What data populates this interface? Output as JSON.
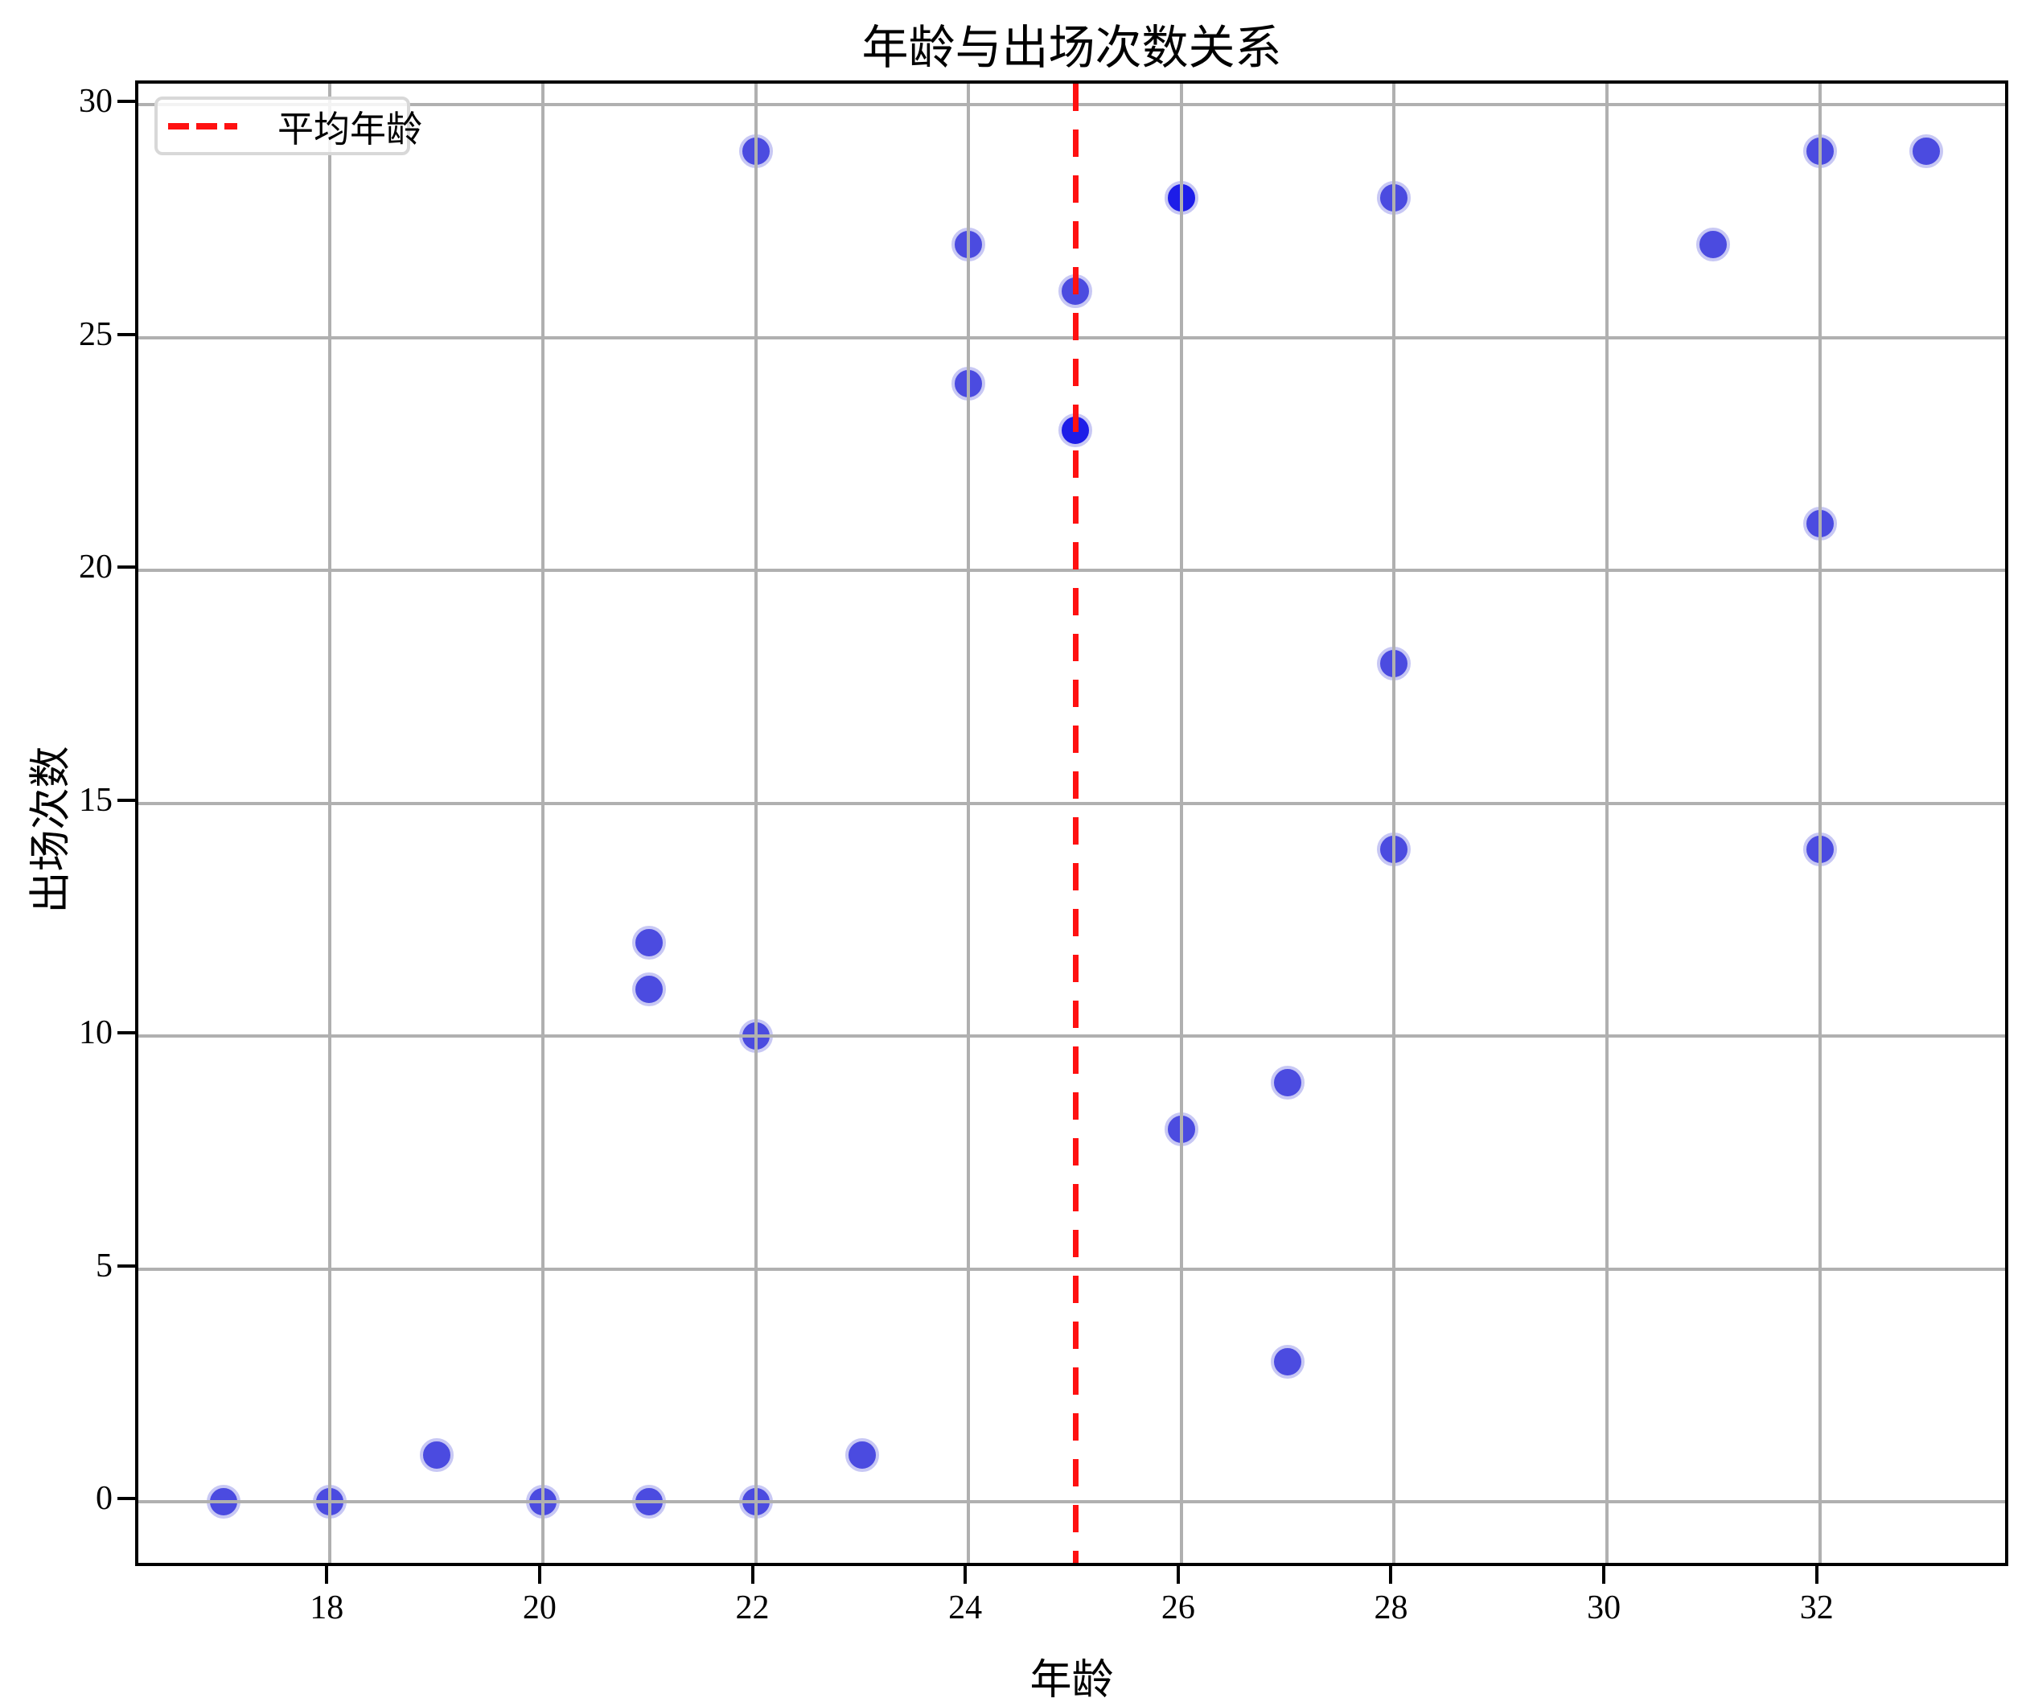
{
  "chart": {
    "title": "年龄与出场次数关系",
    "xlabel": "年龄",
    "ylabel": "出场次数",
    "legend_label": "平均年龄"
  },
  "chart_data": {
    "type": "scatter",
    "title": "年龄与出场次数关系",
    "xlabel": "年龄",
    "ylabel": "出场次数",
    "xlim": [
      16.2,
      33.8
    ],
    "ylim": [
      -1.45,
      30.45
    ],
    "x_ticks": [
      18,
      20,
      22,
      24,
      26,
      28,
      30,
      32
    ],
    "y_ticks": [
      0,
      5,
      10,
      15,
      20,
      25,
      30
    ],
    "grid": true,
    "legend": {
      "position": "upper left",
      "entries": [
        {
          "label": "平均年龄",
          "style": "dashed-line",
          "color": "#ff1111"
        }
      ]
    },
    "avg_age_line": {
      "x": 25,
      "color": "#ff1111",
      "style": "dashed",
      "label": "平均年龄"
    },
    "points": [
      {
        "x": 17,
        "y": 0,
        "count": 1
      },
      {
        "x": 18,
        "y": 0,
        "count": 1
      },
      {
        "x": 19,
        "y": 1,
        "count": 1
      },
      {
        "x": 20,
        "y": 0,
        "count": 1
      },
      {
        "x": 21,
        "y": 0,
        "count": 1
      },
      {
        "x": 21,
        "y": 11,
        "count": 1
      },
      {
        "x": 21,
        "y": 12,
        "count": 1
      },
      {
        "x": 22,
        "y": 0,
        "count": 1
      },
      {
        "x": 22,
        "y": 10,
        "count": 1
      },
      {
        "x": 22,
        "y": 29,
        "count": 1
      },
      {
        "x": 23,
        "y": 1,
        "count": 1
      },
      {
        "x": 24,
        "y": 24,
        "count": 1
      },
      {
        "x": 24,
        "y": 27,
        "count": 1
      },
      {
        "x": 25,
        "y": 23,
        "count": 2
      },
      {
        "x": 25,
        "y": 26,
        "count": 1
      },
      {
        "x": 26,
        "y": 8,
        "count": 1
      },
      {
        "x": 26,
        "y": 28,
        "count": 2
      },
      {
        "x": 27,
        "y": 3,
        "count": 1
      },
      {
        "x": 27,
        "y": 9,
        "count": 1
      },
      {
        "x": 28,
        "y": 14,
        "count": 1
      },
      {
        "x": 28,
        "y": 18,
        "count": 1
      },
      {
        "x": 28,
        "y": 28,
        "count": 1
      },
      {
        "x": 31,
        "y": 27,
        "count": 1
      },
      {
        "x": 32,
        "y": 14,
        "count": 1
      },
      {
        "x": 32,
        "y": 21,
        "count": 1
      },
      {
        "x": 32,
        "y": 29,
        "count": 1
      },
      {
        "x": 33,
        "y": 29,
        "count": 1
      }
    ],
    "colors": {
      "point": "#4b4be0",
      "point_overlap": "#1d1de8",
      "point_edge": "#c8c8f4",
      "grid": "#b0b0b0",
      "spine": "#000000",
      "avg_line": "#ff1111"
    }
  }
}
